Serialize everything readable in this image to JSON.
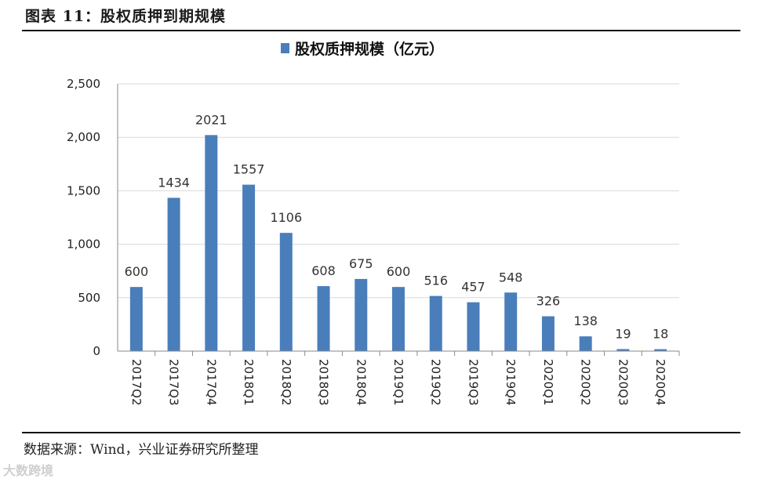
{
  "figure": {
    "title": "图表 11：股权质押到期规模",
    "source": "数据来源：Wind，兴业证券研究所整理",
    "watermark": "大数跨境"
  },
  "chart_data": {
    "type": "bar",
    "categories": [
      "2017Q2",
      "2017Q3",
      "2017Q4",
      "2018Q1",
      "2018Q2",
      "2018Q3",
      "2018Q4",
      "2019Q1",
      "2019Q2",
      "2019Q3",
      "2019Q4",
      "2020Q1",
      "2020Q2",
      "2020Q3",
      "2020Q4"
    ],
    "series": [
      {
        "name": "股权质押规模（亿元）",
        "values": [
          600,
          1434,
          2021,
          1557,
          1106,
          608,
          675,
          600,
          516,
          457,
          548,
          326,
          138,
          19,
          18
        ]
      }
    ],
    "data_labels": [
      "600",
      "1434",
      "2021",
      "1557",
      "1106",
      "608",
      "675",
      "600",
      "516",
      "457",
      "548",
      "326",
      "138",
      "19",
      "18"
    ],
    "ylim": [
      0,
      2500
    ],
    "yticks": [
      0,
      500,
      1000,
      1500,
      2000,
      2500
    ],
    "ytick_labels": [
      "0",
      "500",
      "1,000",
      "1,500",
      "2,000",
      "2,500"
    ],
    "grid": true,
    "legend_position": "top-center",
    "bar_color": "#4a7ebb",
    "xlabel": "",
    "ylabel": ""
  }
}
